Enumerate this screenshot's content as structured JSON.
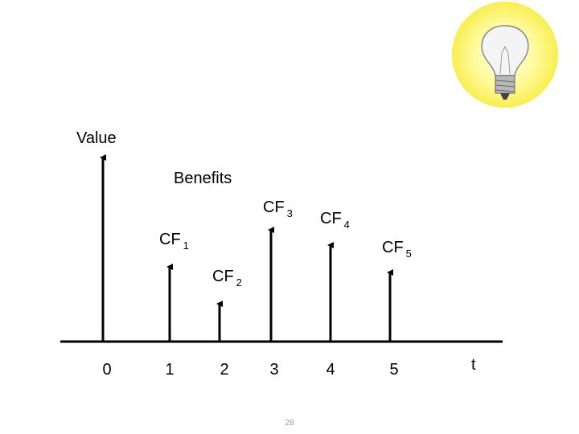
{
  "y_label": "Value",
  "benefits_label": "Benefits",
  "cash_flows": [
    {
      "label": "CF",
      "subscript": "1"
    },
    {
      "label": "CF",
      "subscript": "2"
    },
    {
      "label": "CF",
      "subscript": "3"
    },
    {
      "label": "CF",
      "subscript": "4"
    },
    {
      "label": "CF",
      "subscript": "5"
    }
  ],
  "time_labels": [
    "0",
    "1",
    "2",
    "3",
    "4",
    "5"
  ],
  "x_label": "t",
  "page_number": "28"
}
